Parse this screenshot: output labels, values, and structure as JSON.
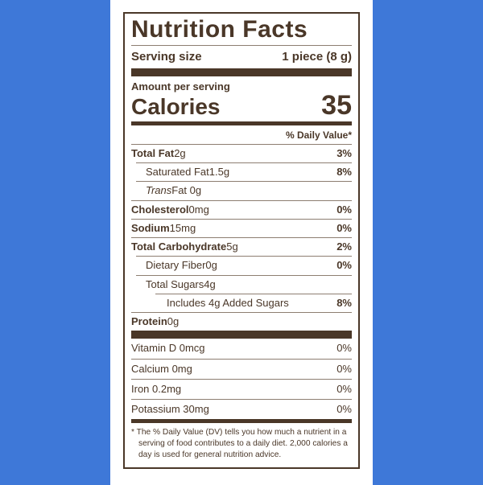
{
  "colors": {
    "background": "#3E78D8",
    "card": "#FFFFFF",
    "ink": "#4A3728"
  },
  "label": {
    "title": "Nutrition Facts",
    "serving_size": {
      "label": "Serving size",
      "value": "1 piece (8 g)"
    },
    "amount_per_serving": "Amount per serving",
    "calories": {
      "label": "Calories",
      "value": "35"
    },
    "daily_value_header": "% Daily Value*",
    "nutrients": [
      {
        "name": "Total Fat",
        "amount": "2g",
        "dv": "3%",
        "bold": true,
        "indent": 0,
        "dv_bold": true
      },
      {
        "name": "Saturated Fat",
        "amount": "1.5g",
        "dv": "8%",
        "indent": 1,
        "dv_bold": true
      },
      {
        "name": "Trans",
        "amount": "Fat 0g",
        "dv": "",
        "italic": true,
        "indent": 1
      },
      {
        "name": "Cholesterol",
        "amount": "0mg",
        "dv": "0%",
        "bold": true,
        "indent": 0,
        "dv_bold": true
      },
      {
        "name": "Sodium",
        "amount": "15mg",
        "dv": "0%",
        "bold": true,
        "indent": 0,
        "dv_bold": true
      },
      {
        "name": "Total Carbohydrate",
        "amount": "5g",
        "dv": "2%",
        "bold": true,
        "indent": 0,
        "dv_bold": true
      },
      {
        "name": "Dietary Fiber",
        "amount": "0g",
        "dv": "0%",
        "indent": 1,
        "dv_bold": true
      },
      {
        "name": "Total Sugars",
        "amount": "4g",
        "dv": "",
        "indent": 1
      },
      {
        "name": "Includes 4g Added Sugars",
        "amount": "",
        "dv": "8%",
        "indent": 2,
        "dv_bold": true
      },
      {
        "name": "Protein",
        "amount": "0g",
        "dv": "",
        "bold": true,
        "indent": 0
      }
    ],
    "vitamins": [
      {
        "name": "Vitamin D 0mcg",
        "dv": "0%"
      },
      {
        "name": "Calcium 0mg",
        "dv": "0%"
      },
      {
        "name": "Iron 0.2mg",
        "dv": "0%"
      },
      {
        "name": "Potassium 30mg",
        "dv": "0%"
      }
    ],
    "footnote": "* The % Daily Value (DV) tells you how much a nutrient in a serving of food contributes to a daily diet. 2,000 calories a day is used for general nutrition advice."
  }
}
